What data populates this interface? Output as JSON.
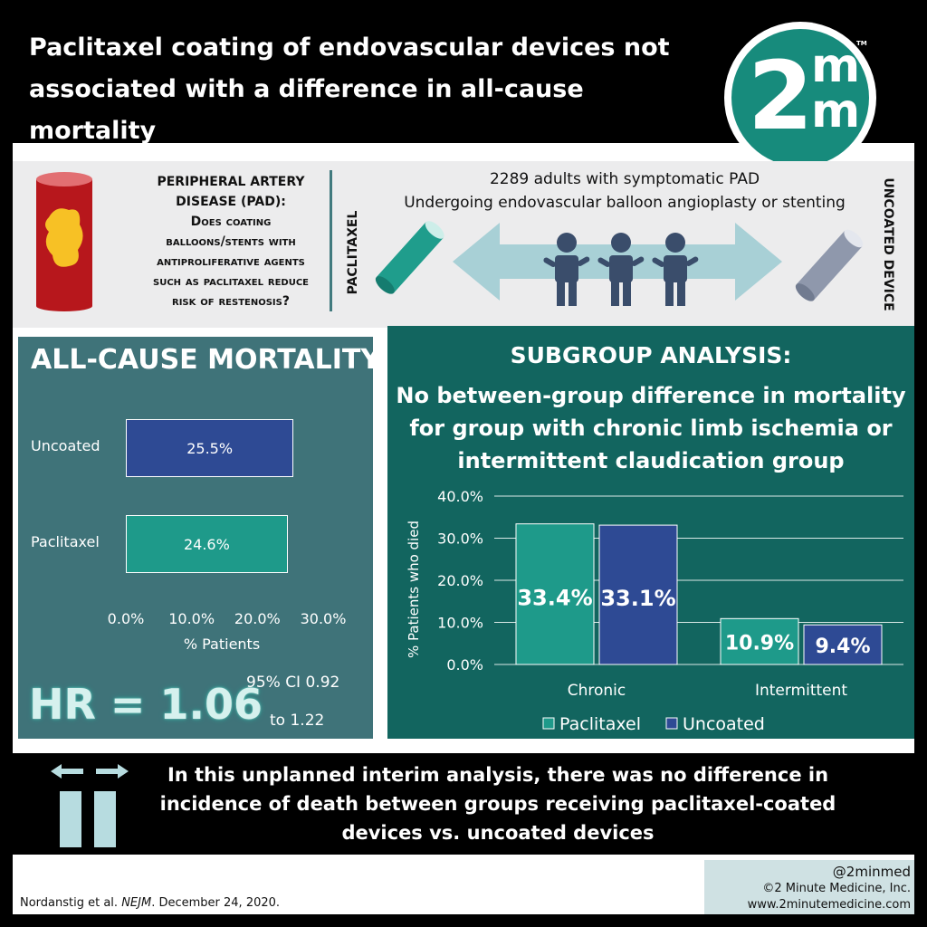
{
  "header": {
    "title_line1": "Paclitaxel coating of endovascular devices not",
    "title_line2": "associated with a difference in all-cause mortality",
    "logo_main": "2",
    "logo_sup": "m",
    "logo_sub": "m",
    "logo_tm": "TM"
  },
  "design": {
    "question_line1": "Peripheral artery",
    "question_line2": "disease (PAD):",
    "question_line3": "Does coating",
    "question_line4": "balloons/stents with",
    "question_line5": "antiproliferative agents",
    "question_line6": "such as paclitaxel reduce",
    "question_line7": "risk of restenosis?",
    "arm_left": "PACLITAXEL",
    "arm_right": "UNCOATED DEVICE",
    "population_line1": "2289 adults with symptomatic PAD",
    "population_line2": "Undergoing endovascular balloon angioplasty or stenting"
  },
  "mortality": {
    "title": "ALL-CAUSE MORTALITY",
    "hr": "HR = 1.06",
    "ci_line1": "95% CI 0.92",
    "ci_line2": "to 1.22"
  },
  "subgroup": {
    "title": "SUBGROUP ANALYSIS:",
    "desc_line1": "No between-group difference in mortality",
    "desc_line2": "for group with chronic limb ischemia or",
    "desc_line3": "intermittent claudication group"
  },
  "footer": {
    "line1": "In this unplanned interim analysis, there was no difference in",
    "line2": "incidence of death between groups receiving paclitaxel-coated",
    "line3": "devices vs. uncoated devices",
    "citation_authors": "Nordanstig et al.",
    "citation_journal": "NEJM",
    "citation_date": ". December 24, 2020.",
    "handle": "@2minmed",
    "copyright": "©2 Minute Medicine, Inc.",
    "website": "www.2minutemedicine.com"
  },
  "colors": {
    "paclitaxel": "#1e9a8a",
    "uncoated": "#2e4a94",
    "panel_left": "#3f7379",
    "panel_right": "#12655f"
  },
  "chart_data": [
    {
      "type": "bar",
      "orientation": "horizontal",
      "categories": [
        "Uncoated",
        "Paclitaxel"
      ],
      "values": [
        25.5,
        24.6
      ],
      "data_labels": [
        "25.5%",
        "24.6%"
      ],
      "xlabel": "% Patients",
      "xlim": [
        0,
        30
      ],
      "xticks": [
        "0.0%",
        "10.0%",
        "20.0%",
        "30.0%"
      ],
      "grid": false
    },
    {
      "type": "bar",
      "categories": [
        "Chronic",
        "Intermittent"
      ],
      "series": [
        {
          "name": "Paclitaxel",
          "values": [
            33.4,
            10.9
          ],
          "data_labels": [
            "33.4%",
            "10.9%"
          ]
        },
        {
          "name": "Uncoated",
          "values": [
            33.1,
            9.4
          ],
          "data_labels": [
            "33.1%",
            "9.4%"
          ]
        }
      ],
      "ylabel": "% Patients who died",
      "ylim": [
        0,
        40
      ],
      "yticks": [
        "0.0%",
        "10.0%",
        "20.0%",
        "30.0%",
        "40.0%"
      ],
      "grid": true,
      "legend": "bottom"
    }
  ]
}
